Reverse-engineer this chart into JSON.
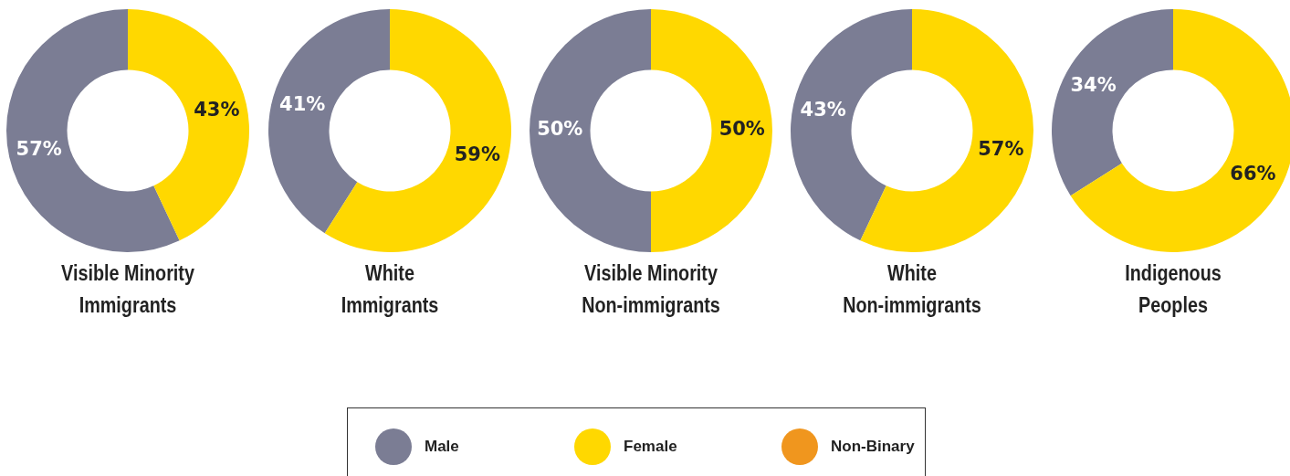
{
  "chart_data": [
    {
      "type": "donut",
      "title": "Visible Minority\nImmigrants",
      "categories": [
        "Male",
        "Female",
        "Non-Binary"
      ],
      "values": [
        57,
        43,
        0
      ],
      "value_labels": [
        "57%",
        "43%",
        null
      ],
      "colors": [
        "#7b7d94",
        "#ffd800",
        "#f0961e"
      ],
      "legend": "bottom"
    },
    {
      "type": "donut",
      "title": "White\nImmigrants",
      "categories": [
        null,
        null,
        null
      ],
      "values": [
        41,
        59,
        0
      ],
      "value_labels": [
        "41%",
        "59%",
        null
      ],
      "colors": [
        "#7b7d94",
        "#ffd800",
        "#f0961e"
      ]
    },
    {
      "type": "donut",
      "title": "Visible Minority\nNon-immigrants",
      "categories": [
        null,
        null,
        null
      ],
      "values": [
        50,
        50,
        0
      ],
      "value_labels": [
        "50%",
        "50%",
        null
      ],
      "colors": [
        "#7b7d94",
        "#ffd800",
        "#f0961e"
      ]
    },
    {
      "type": "donut",
      "title": "White\nNon-immigrants",
      "categories": [
        null,
        null,
        null
      ],
      "values": [
        43,
        57,
        0
      ],
      "value_labels": [
        "43%",
        "57%",
        null
      ],
      "colors": [
        "#7b7d94",
        "#ffd800",
        "#f0961e"
      ]
    },
    {
      "type": "donut",
      "title": "Indigenous\nPeoples",
      "categories": [
        null,
        null,
        null
      ],
      "values": [
        34,
        66,
        0
      ],
      "value_labels": [
        "34%",
        "66%",
        null
      ],
      "colors": [
        "#7b7d94",
        "#ffd800",
        "#f0961e"
      ]
    }
  ]
}
